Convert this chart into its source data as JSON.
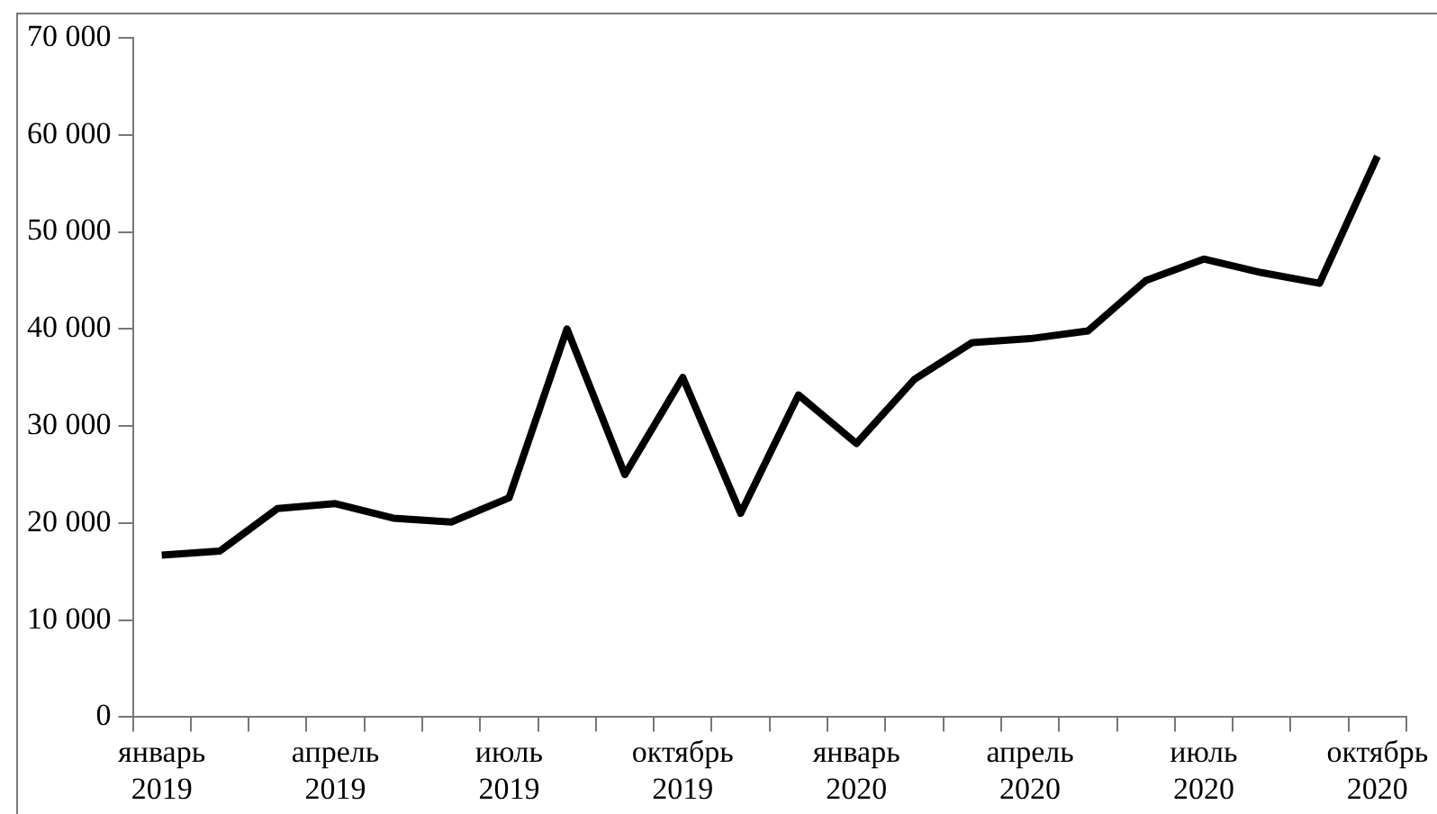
{
  "chart_data": {
    "type": "line",
    "categories": [
      "январь\n2019",
      null,
      null,
      "апрель\n2019",
      null,
      null,
      "июль\n2019",
      null,
      null,
      "октябрь\n2019",
      null,
      null,
      "январь\n2020",
      null,
      null,
      "апрель\n2020",
      null,
      null,
      "июль\n2020",
      null,
      null,
      "октябрь\n2020"
    ],
    "series": [
      {
        "color": "#000000",
        "values": [
          16700,
          17100,
          21500,
          22000,
          20500,
          20100,
          22600,
          40000,
          25000,
          35000,
          21000,
          33200,
          28200,
          34800,
          38600,
          39000,
          39800,
          45000,
          47200,
          45800,
          44700,
          57800
        ]
      }
    ],
    "ylim": [
      0,
      70000
    ],
    "yticks": [
      0,
      {
        "value": 10000,
        "label": "10 000"
      },
      {
        "value": 20000,
        "label": "20 000"
      },
      {
        "value": 30000,
        "label": "30 000"
      },
      {
        "value": 40000,
        "label": "40 000"
      },
      {
        "value": 50000,
        "label": "50 000"
      },
      {
        "value": 60000,
        "label": "60 000"
      },
      {
        "value": 70000,
        "label": "70 000"
      }
    ],
    "grid": false,
    "legend": false,
    "marker": "none",
    "line_style": "solid"
  }
}
